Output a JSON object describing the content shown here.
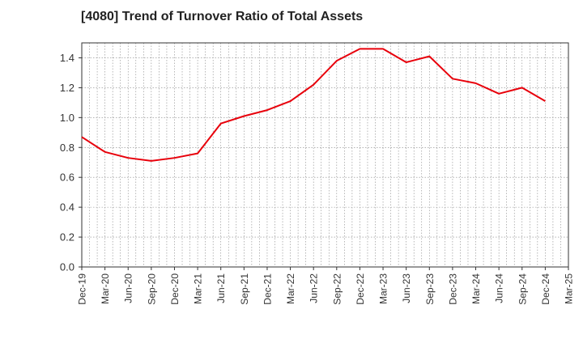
{
  "chart_data": {
    "type": "line",
    "title": "[4080]  Trend of Turnover Ratio of Total Assets",
    "xlabel": "",
    "ylabel": "",
    "ylim": [
      0,
      1.5
    ],
    "yticks": [
      "0.0",
      "0.2",
      "0.4",
      "0.6",
      "0.8",
      "1.0",
      "1.2",
      "1.4"
    ],
    "ytick_values": [
      0,
      0.2,
      0.4,
      0.6,
      0.8,
      1.0,
      1.2,
      1.4
    ],
    "xticks": [
      "Dec-19",
      "Mar-20",
      "Jun-20",
      "Sep-20",
      "Dec-20",
      "Mar-21",
      "Jun-21",
      "Sep-21",
      "Dec-21",
      "Mar-22",
      "Jun-22",
      "Sep-22",
      "Dec-22",
      "Mar-23",
      "Jun-23",
      "Sep-23",
      "Dec-23",
      "Mar-24",
      "Jun-24",
      "Sep-24",
      "Dec-24",
      "Mar-25"
    ],
    "grid": true,
    "legend": "none",
    "series": [
      {
        "color": "#e8000b",
        "x": [
          "Dec-19",
          "Mar-20",
          "Jun-20",
          "Sep-20",
          "Dec-20",
          "Mar-21",
          "Jun-21",
          "Sep-21",
          "Dec-21",
          "Mar-22",
          "Jun-22",
          "Sep-22",
          "Dec-22",
          "Mar-23",
          "Jun-23",
          "Sep-23",
          "Dec-23",
          "Mar-24",
          "Jun-24",
          "Sep-24",
          "Dec-24"
        ],
        "values": [
          0.87,
          0.77,
          0.73,
          0.71,
          0.73,
          0.76,
          0.96,
          1.01,
          1.05,
          1.11,
          1.22,
          1.38,
          1.46,
          1.46,
          1.37,
          1.41,
          1.26,
          1.23,
          1.16,
          1.2,
          1.11
        ]
      }
    ]
  }
}
